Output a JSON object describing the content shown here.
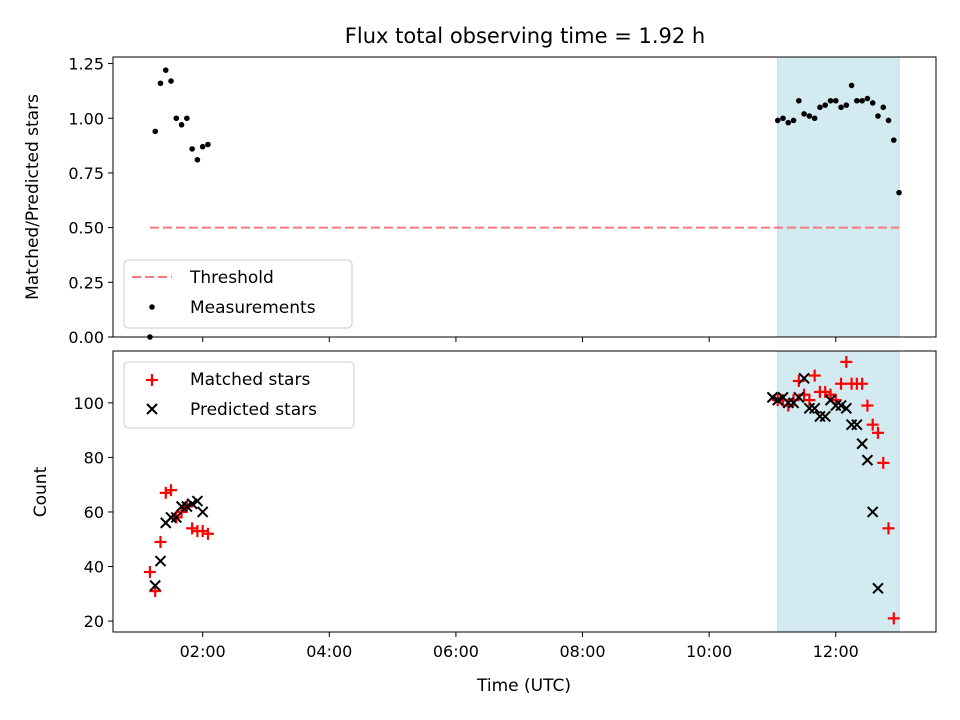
{
  "title": "Flux total observing time = 1.92 h",
  "chart_data": [
    {
      "type": "scatter",
      "panel": "top",
      "title": "Flux total observing time = 1.92 h",
      "xlabel": "",
      "ylabel": "Matched/Predicted stars",
      "xlim": [
        "00:35",
        "13:35"
      ],
      "ylim": [
        0,
        1.28
      ],
      "x_ticks": [
        "02:00",
        "04:00",
        "06:00",
        "08:00",
        "10:00",
        "12:00"
      ],
      "y_ticks": [
        "0.00",
        "0.25",
        "0.50",
        "0.75",
        "1.00",
        "1.25"
      ],
      "highlight_span": [
        "11:05",
        "13:00"
      ],
      "highlight_color": "#d3eaf0",
      "legend_position": "lower-left",
      "series": [
        {
          "name": "Threshold",
          "kind": "dashed-line",
          "color": "#f47b7b",
          "x": [
            "01:10",
            "13:00"
          ],
          "y": [
            0.5,
            0.5
          ]
        },
        {
          "name": "Measurements",
          "kind": "dots",
          "color": "#000000",
          "points": [
            [
              "01:10",
              0.0
            ],
            [
              "01:15",
              0.94
            ],
            [
              "01:20",
              1.16
            ],
            [
              "01:25",
              1.22
            ],
            [
              "01:30",
              1.17
            ],
            [
              "01:35",
              1.0
            ],
            [
              "01:40",
              0.97
            ],
            [
              "01:45",
              1.0
            ],
            [
              "01:50",
              0.86
            ],
            [
              "01:55",
              0.81
            ],
            [
              "02:00",
              0.87
            ],
            [
              "02:05",
              0.88
            ],
            [
              "11:05",
              0.99
            ],
            [
              "11:10",
              1.0
            ],
            [
              "11:15",
              0.98
            ],
            [
              "11:20",
              0.99
            ],
            [
              "11:25",
              1.08
            ],
            [
              "11:30",
              1.02
            ],
            [
              "11:35",
              1.01
            ],
            [
              "11:40",
              1.0
            ],
            [
              "11:45",
              1.05
            ],
            [
              "11:50",
              1.06
            ],
            [
              "11:55",
              1.08
            ],
            [
              "12:00",
              1.08
            ],
            [
              "12:05",
              1.05
            ],
            [
              "12:10",
              1.06
            ],
            [
              "12:15",
              1.15
            ],
            [
              "12:20",
              1.08
            ],
            [
              "12:25",
              1.08
            ],
            [
              "12:30",
              1.09
            ],
            [
              "12:35",
              1.07
            ],
            [
              "12:40",
              1.01
            ],
            [
              "12:45",
              1.05
            ],
            [
              "12:50",
              0.99
            ],
            [
              "12:55",
              0.9
            ],
            [
              "13:00",
              0.66
            ]
          ]
        }
      ]
    },
    {
      "type": "scatter",
      "panel": "bottom",
      "title": "",
      "xlabel": "Time (UTC)",
      "ylabel": "Count",
      "xlim": [
        "00:35",
        "13:35"
      ],
      "ylim": [
        16,
        119
      ],
      "x_ticks": [
        "02:00",
        "04:00",
        "06:00",
        "08:00",
        "10:00",
        "12:00"
      ],
      "y_ticks": [
        "20",
        "40",
        "60",
        "80",
        "100"
      ],
      "highlight_span": [
        "11:05",
        "13:00"
      ],
      "highlight_color": "#d3eaf0",
      "legend_position": "upper-left",
      "series": [
        {
          "name": "Matched stars",
          "kind": "plus",
          "color": "#ff0000",
          "points": [
            [
              "01:10",
              38
            ],
            [
              "01:15",
              31
            ],
            [
              "01:20",
              49
            ],
            [
              "01:25",
              67
            ],
            [
              "01:30",
              68
            ],
            [
              "01:35",
              58
            ],
            [
              "01:40",
              60
            ],
            [
              "01:45",
              62
            ],
            [
              "01:50",
              54
            ],
            [
              "01:55",
              53
            ],
            [
              "02:00",
              53
            ],
            [
              "02:05",
              52
            ],
            [
              "11:05",
              101
            ],
            [
              "11:10",
              101
            ],
            [
              "11:15",
              99
            ],
            [
              "11:20",
              101
            ],
            [
              "11:25",
              108
            ],
            [
              "11:30",
              103
            ],
            [
              "11:35",
              101
            ],
            [
              "11:40",
              110
            ],
            [
              "11:45",
              104
            ],
            [
              "11:50",
              104
            ],
            [
              "11:55",
              103
            ],
            [
              "12:00",
              101
            ],
            [
              "12:05",
              107
            ],
            [
              "12:10",
              115
            ],
            [
              "12:15",
              107
            ],
            [
              "12:20",
              107
            ],
            [
              "12:25",
              107
            ],
            [
              "12:30",
              99
            ],
            [
              "12:35",
              92
            ],
            [
              "12:40",
              89
            ],
            [
              "12:45",
              78
            ],
            [
              "12:50",
              54
            ],
            [
              "12:55",
              21
            ]
          ]
        },
        {
          "name": "Predicted stars",
          "kind": "cross",
          "color": "#000000",
          "points": [
            [
              "01:15",
              33
            ],
            [
              "01:20",
              42
            ],
            [
              "01:25",
              56
            ],
            [
              "01:30",
              58
            ],
            [
              "01:35",
              58
            ],
            [
              "01:40",
              62
            ],
            [
              "01:45",
              62
            ],
            [
              "01:50",
              63
            ],
            [
              "01:55",
              64
            ],
            [
              "02:00",
              60
            ],
            [
              "11:00",
              102
            ],
            [
              "11:05",
              101
            ],
            [
              "11:10",
              102
            ],
            [
              "11:15",
              100
            ],
            [
              "11:20",
              100
            ],
            [
              "11:25",
              102
            ],
            [
              "11:30",
              109
            ],
            [
              "11:35",
              98
            ],
            [
              "11:40",
              98
            ],
            [
              "11:45",
              95
            ],
            [
              "11:50",
              95
            ],
            [
              "11:55",
              101
            ],
            [
              "12:00",
              99
            ],
            [
              "12:05",
              99
            ],
            [
              "12:10",
              98
            ],
            [
              "12:15",
              92
            ],
            [
              "12:20",
              92
            ],
            [
              "12:25",
              85
            ],
            [
              "12:30",
              79
            ],
            [
              "12:35",
              60
            ],
            [
              "12:40",
              32
            ]
          ]
        }
      ]
    }
  ]
}
